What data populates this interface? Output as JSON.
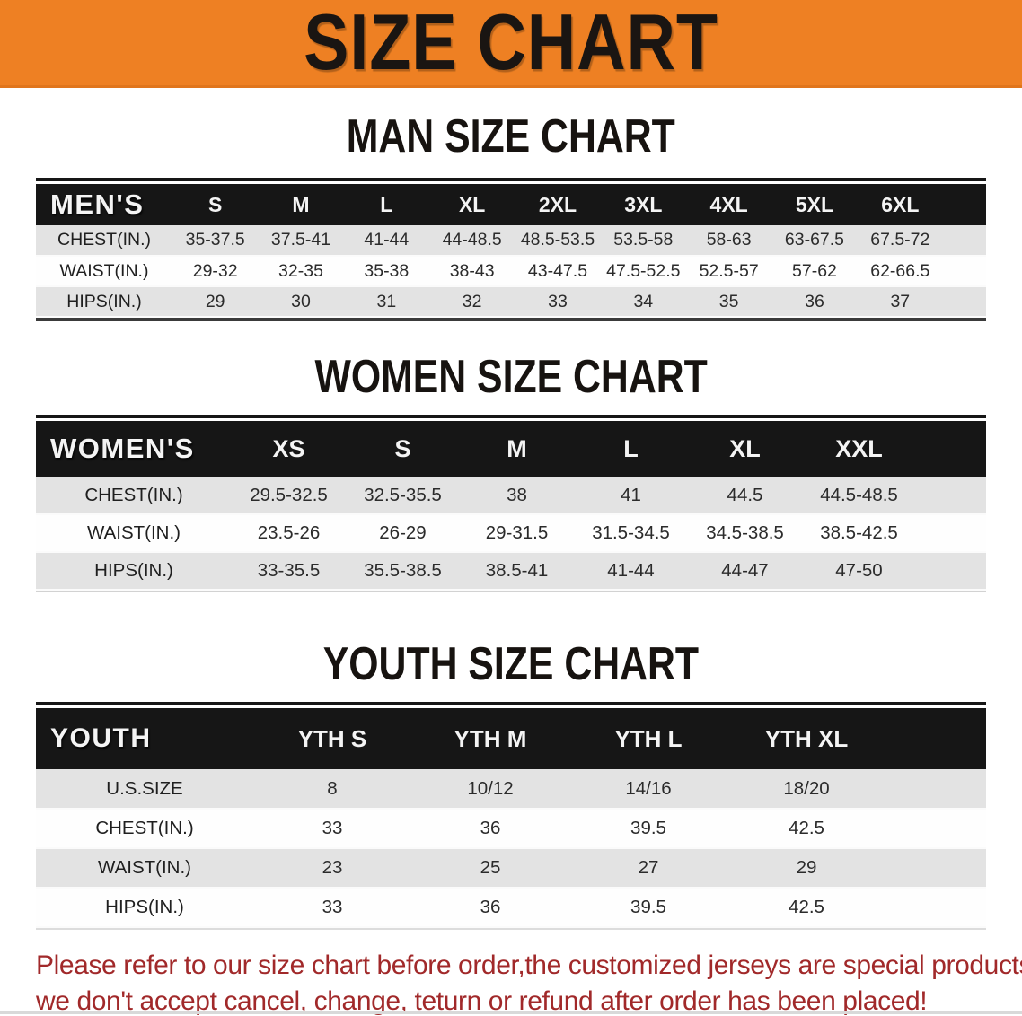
{
  "banner": {
    "title": "SIZE CHART",
    "bg_color": "#ee8023",
    "text_color": "#1a1512"
  },
  "sections": {
    "men_heading": "MAN SIZE CHART",
    "women_heading": "WOMEN SIZE CHART",
    "youth_heading": "YOUTH SIZE CHART"
  },
  "tables": {
    "men": {
      "header_label": "MEN'S",
      "sizes": [
        "S",
        "M",
        "L",
        "XL",
        "2XL",
        "3XL",
        "4XL",
        "5XL",
        "6XL"
      ],
      "rows": [
        {
          "label": "CHEST(IN.)",
          "values": [
            "35-37.5",
            "37.5-41",
            "41-44",
            "44-48.5",
            "48.5-53.5",
            "53.5-58",
            "58-63",
            "63-67.5",
            "67.5-72"
          ]
        },
        {
          "label": "WAIST(IN.)",
          "values": [
            "29-32",
            "32-35",
            "35-38",
            "38-43",
            "43-47.5",
            "47.5-52.5",
            "52.5-57",
            "57-62",
            "62-66.5"
          ]
        },
        {
          "label": "HIPS(IN.)",
          "values": [
            "29",
            "30",
            "31",
            "32",
            "33",
            "34",
            "35",
            "36",
            "37"
          ]
        }
      ]
    },
    "women": {
      "header_label": "WOMEN'S",
      "sizes": [
        "XS",
        "S",
        "M",
        "L",
        "XL",
        "XXL"
      ],
      "rows": [
        {
          "label": "CHEST(IN.)",
          "values": [
            "29.5-32.5",
            "32.5-35.5",
            "38",
            "41",
            "44.5",
            "44.5-48.5"
          ]
        },
        {
          "label": "WAIST(IN.)",
          "values": [
            "23.5-26",
            "26-29",
            "29-31.5",
            "31.5-34.5",
            "34.5-38.5",
            "38.5-42.5"
          ]
        },
        {
          "label": "HIPS(IN.)",
          "values": [
            "33-35.5",
            "35.5-38.5",
            "38.5-41",
            "41-44",
            "44-47",
            "47-50"
          ]
        }
      ]
    },
    "youth": {
      "header_label": "YOUTH",
      "sizes": [
        "YTH S",
        "YTH M",
        "YTH L",
        "YTH XL"
      ],
      "rows": [
        {
          "label": "U.S.SIZE",
          "values": [
            "8",
            "10/12",
            "14/16",
            "18/20"
          ]
        },
        {
          "label": "CHEST(IN.)",
          "values": [
            "33",
            "36",
            "39.5",
            "42.5"
          ]
        },
        {
          "label": "WAIST(IN.)",
          "values": [
            "23",
            "25",
            "27",
            "29"
          ]
        },
        {
          "label": "HIPS(IN.)",
          "values": [
            "33",
            "36",
            "39.5",
            "42.5"
          ]
        }
      ]
    }
  },
  "footer": {
    "line1": "Please refer to our size chart before order,the customized jerseys are special products,",
    "line2": "we don't accept cancel, change, teturn or refund after order has been placed!",
    "text_color": "#a1292a"
  }
}
